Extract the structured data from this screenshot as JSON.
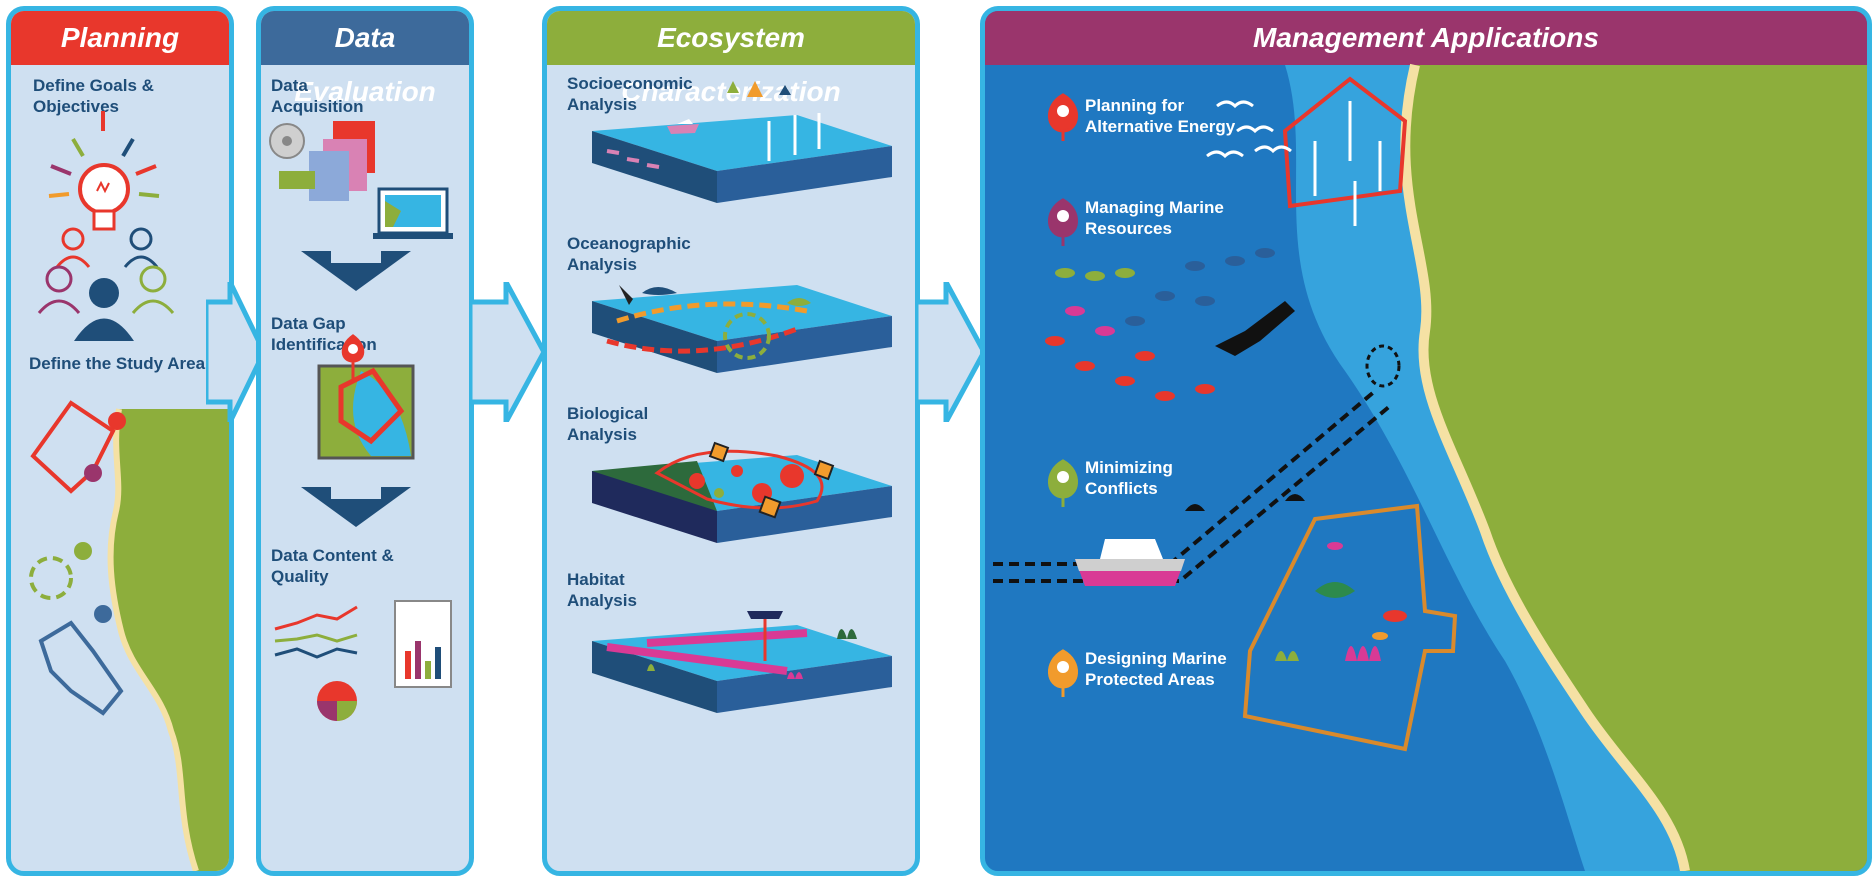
{
  "panels": {
    "planning": {
      "title": "Planning",
      "items": [
        "Define Goals &\nObjectives",
        "Define the Study Area"
      ]
    },
    "data_evaluation": {
      "title": "Data Evaluation",
      "items": [
        "Data\nAcquisition",
        "Data Gap\nIdentification",
        "Data Content &\nQuality"
      ]
    },
    "ecosystem": {
      "title": "Ecosystem Characterization",
      "items": [
        "Socioeconomic\nAnalysis",
        "Oceanographic\nAnalysis",
        "Biological\nAnalysis",
        "Habitat\nAnalysis"
      ]
    },
    "management": {
      "title": "Management Applications",
      "items": [
        "Planning for\nAlternative Energy",
        "Managing Marine\nResources",
        "Minimizing\nConflicts",
        "Designing Marine\nProtected Areas"
      ]
    }
  },
  "colors": {
    "border": "#36b5e3",
    "panel_bg": "#cfe0f1",
    "planning_header": "#e8372c",
    "data_header": "#3d6a9b",
    "ecosystem_header": "#8dae3c",
    "management_header": "#9a356c",
    "ocean": "#1f78c1",
    "land": "#8dae3c",
    "label_text": "#1f4e79"
  },
  "icons": {
    "pin_alternative_energy": "map-pin-red-icon",
    "pin_marine_resources": "map-pin-purple-icon",
    "pin_conflicts": "map-pin-green-icon",
    "pin_protected_areas": "map-pin-orange-icon"
  }
}
